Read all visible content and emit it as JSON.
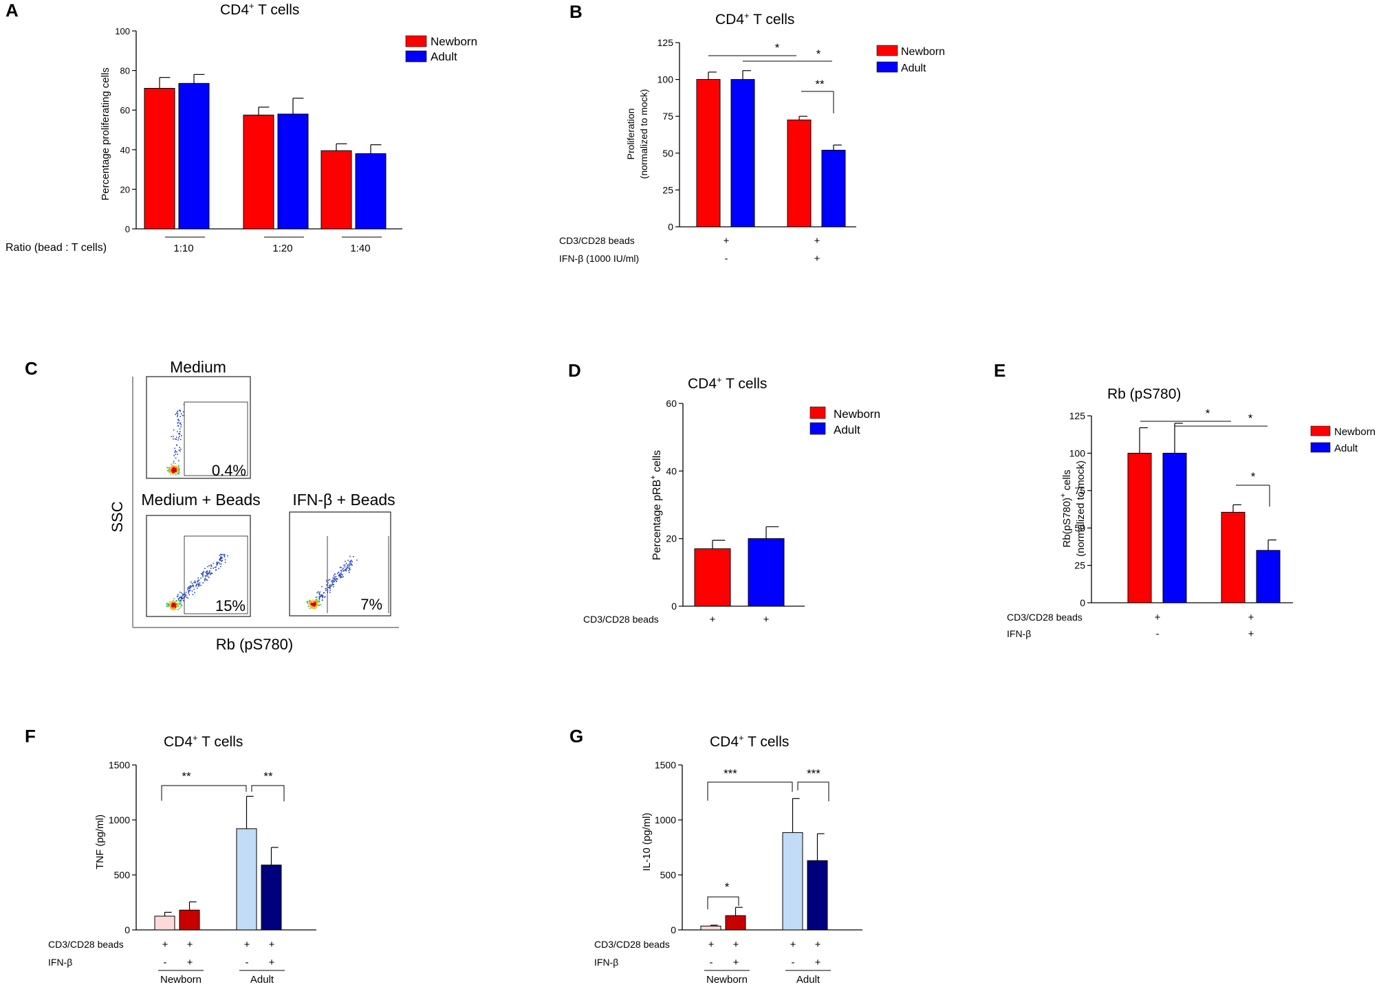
{
  "panel_letters": {
    "A": "A",
    "B": "B",
    "C": "C",
    "D": "D",
    "E": "E",
    "F": "F",
    "G": "G"
  },
  "colors": {
    "newborn": "#ff0000",
    "adult": "#0000ff",
    "newborn_light": "#fcdada",
    "newborn_dark": "#c80000",
    "adult_light": "#c2dcf7",
    "adult_dark": "#00007e"
  },
  "chart_data": [
    {
      "id": "A",
      "type": "bar",
      "title_main": "CD4",
      "title_sup": "+",
      "title_rest": " T cells",
      "ylabel": "Percentage proliferating cells",
      "ylim": [
        0,
        100
      ],
      "yticks": [
        "0",
        "20",
        "40",
        "60",
        "80",
        "100"
      ],
      "categories": [
        "1:10",
        "1:20",
        "1:40"
      ],
      "row_label": "Ratio (bead : T cells)",
      "legend": [
        "Newborn",
        "Adult"
      ],
      "series": [
        {
          "name": "Newborn",
          "values": [
            71,
            57.5,
            39.5
          ],
          "errors": [
            5.5,
            4,
            3.5
          ]
        },
        {
          "name": "Adult",
          "values": [
            73.5,
            58,
            38
          ],
          "errors": [
            4.5,
            8,
            4.5
          ]
        }
      ]
    },
    {
      "id": "B",
      "type": "bar",
      "title_main": "CD4",
      "title_sup": "+",
      "title_rest": "  T cells",
      "ylabel": "Proliferation",
      "ylabel2": "(normalized to mock)",
      "ylim": [
        0,
        125
      ],
      "yticks": [
        "0",
        "25",
        "50",
        "75",
        "100",
        "125"
      ],
      "conditions": [
        {
          "label": "CD3/CD28 beads",
          "values": [
            "+",
            "+"
          ]
        },
        {
          "label": "IFN-β (1000 IU/ml)",
          "values": [
            "-",
            "+"
          ]
        }
      ],
      "legend": [
        "Newborn",
        "Adult"
      ],
      "series": [
        {
          "name": "Newborn",
          "values": [
            100,
            72.5
          ],
          "errors": [
            5,
            2.5
          ]
        },
        {
          "name": "Adult",
          "values": [
            100,
            52
          ],
          "errors": [
            6,
            3.5
          ]
        }
      ],
      "significance": [
        "*",
        "*",
        "**"
      ]
    },
    {
      "id": "D",
      "type": "bar",
      "title_main": "CD4",
      "title_sup": "+",
      "title_rest": "  T cells",
      "ylabel": "Percentage pRB",
      "ylabel_sup": "+",
      "ylabel_rest": " cells",
      "ylim": [
        0,
        60
      ],
      "yticks": [
        "0",
        "20",
        "40",
        "60"
      ],
      "conditions": [
        {
          "label": "CD3/CD28 beads",
          "values": [
            "+",
            "+"
          ]
        }
      ],
      "legend": [
        "Newborn",
        "Adult"
      ],
      "series": [
        {
          "name": "Newborn",
          "values": [
            17
          ],
          "errors": [
            2.5
          ]
        },
        {
          "name": "Adult",
          "values": [
            20
          ],
          "errors": [
            3.5
          ]
        }
      ]
    },
    {
      "id": "E",
      "type": "bar",
      "title": "Rb (pS780)",
      "ylabel": "Rb(pS780)",
      "ylabel_sup": "+",
      "ylabel_rest": " cells",
      "ylabel2": "(normalized to mock)",
      "ylim": [
        0,
        125
      ],
      "yticks": [
        "0",
        "25",
        "50",
        "75",
        "100",
        "125"
      ],
      "conditions": [
        {
          "label": "CD3/CD28 beads",
          "values": [
            "+",
            "+"
          ]
        },
        {
          "label": "IFN-β",
          "values": [
            "-",
            "+"
          ]
        }
      ],
      "legend": [
        "Newborn",
        "Adult"
      ],
      "series": [
        {
          "name": "Newborn",
          "values": [
            100,
            60.5
          ],
          "errors": [
            17,
            5
          ]
        },
        {
          "name": "Adult",
          "values": [
            100,
            35
          ],
          "errors": [
            20,
            7
          ]
        }
      ],
      "significance": [
        "*",
        "*",
        "*"
      ]
    },
    {
      "id": "F",
      "type": "bar",
      "title_main": "CD4",
      "title_sup": "+",
      "title_rest": "  T cells",
      "ylabel": "TNF (pg/ml)",
      "ylim": [
        0,
        1500
      ],
      "yticks": [
        "0",
        "500",
        "1000",
        "1500"
      ],
      "conditions": [
        {
          "label": "CD3/CD28 beads",
          "values": [
            "+",
            "+",
            "+",
            "+"
          ]
        },
        {
          "label": "IFN-β",
          "values": [
            "-",
            "+",
            "-",
            "+"
          ]
        }
      ],
      "groups": [
        "Newborn",
        "Adult"
      ],
      "values": [
        125,
        180,
        920,
        590
      ],
      "errors": [
        35,
        75,
        295,
        160
      ],
      "significance": [
        "**",
        "**"
      ]
    },
    {
      "id": "G",
      "type": "bar",
      "title_main": "CD4",
      "title_sup": "+",
      "title_rest": "  T cells",
      "ylabel": "IL-10 (pg/ml)",
      "ylim": [
        0,
        1500
      ],
      "yticks": [
        "0",
        "500",
        "1000",
        "1500"
      ],
      "conditions": [
        {
          "label": "CD3/CD28 beads",
          "values": [
            "+",
            "+",
            "+",
            "+"
          ]
        },
        {
          "label": "IFN-β",
          "values": [
            "-",
            "+",
            "-",
            "+"
          ]
        }
      ],
      "groups": [
        "Newborn",
        "Adult"
      ],
      "values": [
        35,
        130,
        885,
        630
      ],
      "errors": [
        8,
        75,
        310,
        245
      ],
      "significance": [
        "*",
        "***",
        "***"
      ]
    }
  ],
  "flow_panel": {
    "y_axis": "SSC",
    "x_axis": "Rb (pS780)",
    "plots": [
      {
        "title": "Medium",
        "percent": "0.4%"
      },
      {
        "title": "Medium + Beads",
        "percent": "15%"
      },
      {
        "title": "IFN-β + Beads",
        "percent": "7%"
      }
    ]
  }
}
